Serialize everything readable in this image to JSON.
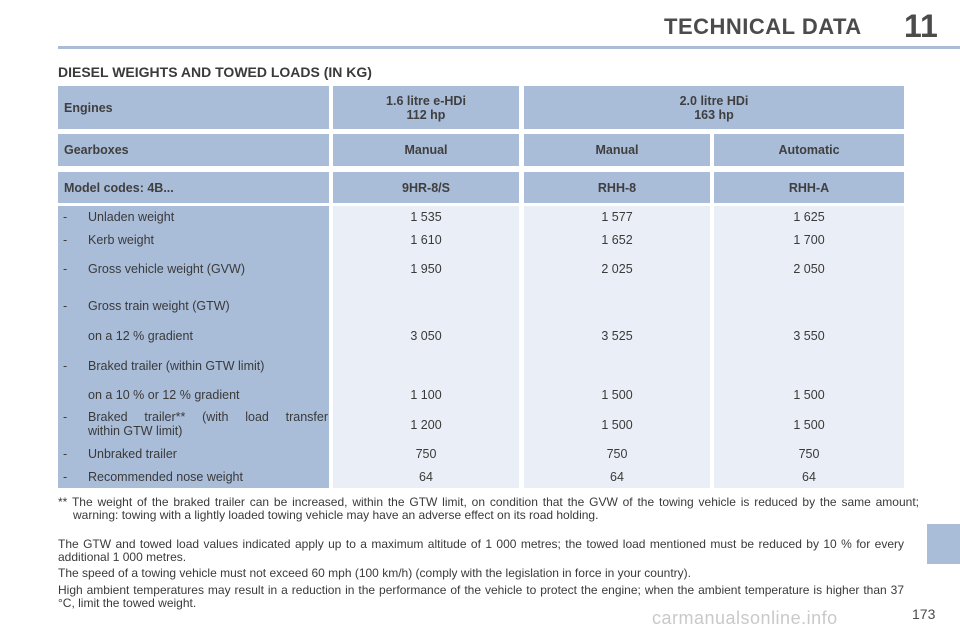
{
  "header": {
    "title": "TECHNICAL DATA",
    "chapter": "11"
  },
  "section_title": "DIESEL WEIGHTS AND TOWED LOADS (IN KG)",
  "table": {
    "engines_label": "Engines",
    "engine_1": {
      "line1": "1.6 litre e-HDi",
      "line2": "112 hp"
    },
    "engine_2": {
      "line1": "2.0 litre HDi",
      "line2": "163 hp"
    },
    "gearboxes_label": "Gearboxes",
    "gearboxes": [
      "Manual",
      "Manual",
      "Automatic"
    ],
    "model_codes_label": "Model codes: 4B...",
    "model_codes": [
      "9HR-8/S",
      "RHH-8",
      "RHH-A"
    ],
    "rows": [
      {
        "dash": "-",
        "label": "Unladen weight",
        "values": [
          "1 535",
          "1 577",
          "1 625"
        ]
      },
      {
        "dash": "-",
        "label": "Kerb weight",
        "values": [
          "1 610",
          "1 652",
          "1 700"
        ]
      },
      {
        "dash": "-",
        "label": "Gross vehicle weight (GVW)",
        "values": [
          "1 950",
          "2 025",
          "2 050"
        ]
      },
      {
        "dash": "-",
        "label": "Gross train weight (GTW)",
        "values": [
          "",
          "",
          ""
        ]
      },
      {
        "dash": "",
        "label": "on a 12 % gradient",
        "values": [
          "3 050",
          "3 525",
          "3 550"
        ]
      },
      {
        "dash": "-",
        "label": "Braked trailer (within GTW limit)",
        "values": [
          "",
          "",
          ""
        ]
      },
      {
        "dash": "",
        "label": "on a 10 % or 12 % gradient",
        "values": [
          "1 100",
          "1 500",
          "1 500"
        ]
      },
      {
        "dash": "-",
        "label": "Braked trailer** (with load transfer",
        "label2": "within GTW limit)",
        "values": [
          "1 200",
          "1 500",
          "1 500"
        ]
      },
      {
        "dash": "-",
        "label": "Unbraked trailer",
        "values": [
          "750",
          "750",
          "750"
        ]
      },
      {
        "dash": "-",
        "label": "Recommended nose weight",
        "values": [
          "64",
          "64",
          "64"
        ]
      }
    ]
  },
  "footnotes": {
    "note1": "** The weight of the braked trailer can be increased, within the GTW limit, on condition that the GVW of the towing vehicle is reduced by the same amount; warning: towing with a lightly loaded towing vehicle may have an adverse effect on its road holding.",
    "note2": "The GTW and towed load values indicated apply up to a maximum altitude of 1 000 metres; the towed load mentioned must be reduced by 10 % for every additional 1 000 metres.",
    "note3": "The speed of a towing vehicle must not exceed 60 mph (100 km/h) (comply with the legislation in force in your country).",
    "note4": "High ambient temperatures may result in a reduction in the performance of the vehicle to protect the engine; when the ambient temperature is higher than 37 °C, limit the towed weight."
  },
  "page_number": "173",
  "watermark": "carmanualsonline.info"
}
